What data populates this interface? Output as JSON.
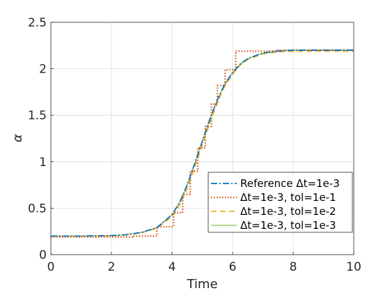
{
  "chart_data": {
    "type": "line",
    "title": "",
    "xlabel": "Time",
    "ylabel": "α",
    "xlim": [
      0,
      10
    ],
    "ylim": [
      0,
      2.5
    ],
    "xticks": [
      "0",
      "2",
      "4",
      "6",
      "8",
      "10"
    ],
    "yticks": [
      "0",
      "0.5",
      "1",
      "1.5",
      "2",
      "2.5"
    ],
    "grid": true,
    "legend_position": "bottom-right",
    "series": [
      {
        "name": "Reference Δt=1e-3",
        "color": "#0072BD",
        "style": "dashdot",
        "x": [
          0,
          1,
          2,
          2.5,
          3,
          3.5,
          4,
          4.25,
          4.5,
          4.75,
          5,
          5.25,
          5.5,
          5.75,
          6,
          6.25,
          6.5,
          7,
          7.5,
          8,
          9,
          10
        ],
        "y": [
          0.2,
          0.2,
          0.205,
          0.215,
          0.24,
          0.29,
          0.43,
          0.56,
          0.75,
          0.98,
          1.22,
          1.46,
          1.67,
          1.84,
          1.96,
          2.05,
          2.11,
          2.17,
          2.19,
          2.2,
          2.2,
          2.2
        ]
      },
      {
        "name": "Δt=1e-3, tol=1e-1",
        "color": "#D95319",
        "style": "dotted",
        "x": [
          0,
          2.7,
          2.7,
          3.5,
          3.5,
          4.05,
          4.05,
          4.35,
          4.35,
          4.6,
          4.6,
          4.85,
          4.85,
          5.1,
          5.1,
          5.3,
          5.3,
          5.5,
          5.5,
          5.75,
          5.75,
          6.1,
          6.1,
          7.4,
          7.4,
          10
        ],
        "y": [
          0.19,
          0.19,
          0.2,
          0.2,
          0.3,
          0.3,
          0.45,
          0.45,
          0.65,
          0.65,
          0.9,
          0.9,
          1.15,
          1.15,
          1.38,
          1.38,
          1.62,
          1.62,
          1.82,
          1.82,
          1.99,
          1.99,
          2.19,
          2.19,
          2.2,
          2.2
        ]
      },
      {
        "name": "Δt=1e-3, tol=1e-2",
        "color": "#EDB120",
        "style": "dashed",
        "x": [
          0,
          1,
          2,
          2.5,
          3,
          3.5,
          4,
          4.25,
          4.5,
          4.75,
          5,
          5.25,
          5.5,
          5.75,
          6,
          6.25,
          6.5,
          7,
          7.5,
          8,
          9,
          10
        ],
        "y": [
          0.2,
          0.2,
          0.203,
          0.212,
          0.236,
          0.285,
          0.41,
          0.53,
          0.71,
          0.94,
          1.18,
          1.42,
          1.64,
          1.82,
          1.94,
          2.04,
          2.1,
          2.16,
          2.18,
          2.19,
          2.19,
          2.19
        ]
      },
      {
        "name": "Δt=1e-3, tol=1e-3",
        "color": "#77AC30",
        "style": "solid",
        "x": [
          0,
          1,
          2,
          2.5,
          3,
          3.5,
          4,
          4.25,
          4.5,
          4.75,
          5,
          5.25,
          5.5,
          5.75,
          6,
          6.25,
          6.5,
          7,
          7.5,
          8,
          9,
          10
        ],
        "y": [
          0.2,
          0.2,
          0.205,
          0.215,
          0.24,
          0.29,
          0.43,
          0.56,
          0.75,
          0.98,
          1.22,
          1.46,
          1.67,
          1.84,
          1.96,
          2.05,
          2.11,
          2.17,
          2.19,
          2.2,
          2.2,
          2.2
        ]
      }
    ]
  }
}
